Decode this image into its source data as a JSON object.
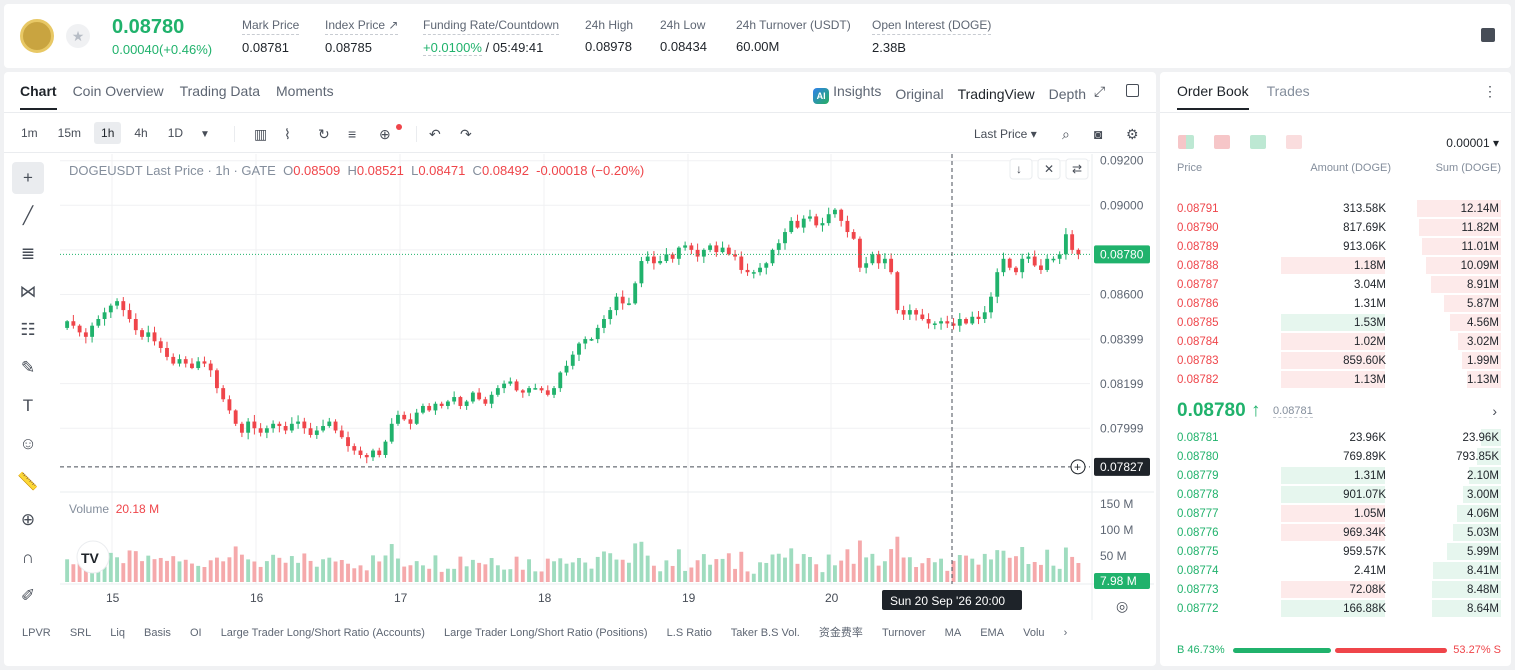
{
  "header": {
    "last_price": "0.08780",
    "change": "0.00040(+0.46%)",
    "stats": [
      {
        "key": "Mark Price",
        "value": "0.08781"
      },
      {
        "key": "Index Price ↗",
        "value": "0.08785"
      },
      {
        "key": "Funding Rate/Countdown",
        "value": "+0.0100%",
        "value2": "/ 05:49:41"
      },
      {
        "key": "24h High",
        "value": "0.08978"
      },
      {
        "key": "24h Low",
        "value": "0.08434"
      },
      {
        "key": "24h Turnover (USDT)",
        "value": "60.00M"
      },
      {
        "key": "Open Interest (DOGE)",
        "value": "2.38B"
      }
    ]
  },
  "chart_tabs": [
    "Chart",
    "Coin Overview",
    "Trading Data",
    "Moments"
  ],
  "view_tabs": {
    "insights": "Insights",
    "original": "Original",
    "tradingview": "TradingView",
    "depth": "Depth"
  },
  "intervals": [
    "1m",
    "15m",
    "1h",
    "4h",
    "1D"
  ],
  "price_type": "Last Price ▾",
  "legend": {
    "symbol": "DOGEUSDT Last Price · 1h · GATE",
    "o": "0.08509",
    "h": "0.08521",
    "l": "0.08471",
    "c": "0.08492",
    "chg": "-0.00018 (−0.20%)"
  },
  "volume_legend": {
    "label": "Volume",
    "value": "20.18 M"
  },
  "bottom_indicators": [
    "LPVR",
    "SRL",
    "Liq",
    "Basis",
    "OI",
    "Large Trader Long/Short Ratio (Accounts)",
    "Large Trader Long/Short Ratio (Positions)",
    "L.S Ratio",
    "Taker B.S Vol.",
    "资金费率",
    "Turnover",
    "MA",
    "EMA",
    "Volu"
  ],
  "chart_data": {
    "type": "candlestick",
    "symbol": "DOGEUSDT",
    "interval": "1h",
    "price_axis_ticks": [
      "0.09200",
      "0.09000",
      "0.08600",
      "0.08399",
      "0.08199",
      "0.07999"
    ],
    "volume_axis_ticks": [
      "150 M",
      "100 M",
      "50 M"
    ],
    "x_ticks": [
      "15",
      "16",
      "17",
      "18",
      "19",
      "20"
    ],
    "ylim": [
      0.0775,
      0.0923
    ],
    "vol_max": 160,
    "last_price_label": "0.08780",
    "crosshair_price_label": "0.07827",
    "crosshair_volume_label": "7.98 M",
    "crosshair_time_label": "Sun 20 Sep '26   20:00",
    "closes": [
      0.0848,
      0.0846,
      0.0843,
      0.0841,
      0.0846,
      0.0849,
      0.0852,
      0.0855,
      0.0857,
      0.0853,
      0.0849,
      0.0844,
      0.0841,
      0.0843,
      0.0839,
      0.0836,
      0.0832,
      0.0829,
      0.0831,
      0.0829,
      0.0827,
      0.083,
      0.0829,
      0.0826,
      0.0818,
      0.0813,
      0.0808,
      0.0802,
      0.0798,
      0.0803,
      0.08,
      0.0798,
      0.08,
      0.0802,
      0.0801,
      0.0799,
      0.0802,
      0.0803,
      0.08,
      0.0797,
      0.0799,
      0.0801,
      0.0803,
      0.0799,
      0.0796,
      0.0792,
      0.079,
      0.0788,
      0.0787,
      0.079,
      0.0788,
      0.0794,
      0.0802,
      0.0806,
      0.0804,
      0.0802,
      0.0807,
      0.081,
      0.0808,
      0.0811,
      0.081,
      0.0812,
      0.0814,
      0.081,
      0.0812,
      0.0816,
      0.0813,
      0.0811,
      0.0815,
      0.0818,
      0.082,
      0.0821,
      0.0817,
      0.0816,
      0.0818,
      0.0818,
      0.0817,
      0.0815,
      0.0818,
      0.0825,
      0.0828,
      0.0833,
      0.0838,
      0.084,
      0.084,
      0.0845,
      0.0849,
      0.0853,
      0.0859,
      0.0856,
      0.0856,
      0.0865,
      0.0875,
      0.0877,
      0.0874,
      0.0875,
      0.0878,
      0.0876,
      0.0881,
      0.0882,
      0.088,
      0.0877,
      0.088,
      0.0882,
      0.0879,
      0.0881,
      0.0878,
      0.0877,
      0.0871,
      0.087,
      0.087,
      0.0872,
      0.0874,
      0.088,
      0.0883,
      0.0888,
      0.0893,
      0.089,
      0.0894,
      0.0895,
      0.0891,
      0.0892,
      0.0896,
      0.0898,
      0.0893,
      0.0888,
      0.0885,
      0.0872,
      0.0874,
      0.0878,
      0.0874,
      0.0876,
      0.087,
      0.0853,
      0.0851,
      0.0853,
      0.0851,
      0.0849,
      0.0847,
      0.0847,
      0.0848,
      0.0847,
      0.0846,
      0.0849,
      0.0847,
      0.085,
      0.0849,
      0.0852,
      0.0859,
      0.087,
      0.0876,
      0.0872,
      0.087,
      0.0876,
      0.0877,
      0.0873,
      0.0871,
      0.0876,
      0.0876,
      0.0878,
      0.0887,
      0.088,
      0.0878
    ]
  },
  "orderbook": {
    "tabs": [
      "Order Book",
      "Trades"
    ],
    "precision": "0.00001 ▾",
    "headers": {
      "price": "Price",
      "amount": "Amount (DOGE)",
      "sum": "Sum (DOGE)"
    },
    "asks": [
      {
        "price": "0.08791",
        "amount": "313.58K",
        "sum": "12.14M",
        "amt_side": "sell",
        "amt_frac": 0.0,
        "sum_frac": 0.36
      },
      {
        "price": "0.08790",
        "amount": "817.69K",
        "sum": "11.82M",
        "amt_side": "sell",
        "amt_frac": 0.0,
        "sum_frac": 0.35
      },
      {
        "price": "0.08789",
        "amount": "913.06K",
        "sum": "11.01M",
        "amt_side": "sell",
        "amt_frac": 0.0,
        "sum_frac": 0.33
      },
      {
        "price": "0.08788",
        "amount": "1.18M",
        "sum": "10.09M",
        "amt_side": "sell",
        "amt_frac": 1.0,
        "sum_frac": 0.3
      },
      {
        "price": "0.08787",
        "amount": "3.04M",
        "sum": "8.91M",
        "amt_side": "sell",
        "amt_frac": 0.0,
        "sum_frac": 0.27
      },
      {
        "price": "0.08786",
        "amount": "1.31M",
        "sum": "5.87M",
        "amt_side": "sell",
        "amt_frac": 0.0,
        "sum_frac": 0.18
      },
      {
        "price": "0.08785",
        "amount": "1.53M",
        "sum": "4.56M",
        "amt_side": "buy",
        "amt_frac": 1.0,
        "sum_frac": 0.14
      },
      {
        "price": "0.08784",
        "amount": "1.02M",
        "sum": "3.02M",
        "amt_side": "sell",
        "amt_frac": 1.0,
        "sum_frac": 0.09
      },
      {
        "price": "0.08783",
        "amount": "859.60K",
        "sum": "1.99M",
        "amt_side": "sell",
        "amt_frac": 1.0,
        "sum_frac": 0.06
      },
      {
        "price": "0.08782",
        "amount": "1.13M",
        "sum": "1.13M",
        "amt_side": "sell",
        "amt_frac": 1.0,
        "sum_frac": 0.03
      }
    ],
    "mid_price": "0.08780 ↑",
    "mid_mark": "0.08781",
    "bids": [
      {
        "price": "0.08781",
        "amount": "23.96K",
        "sum": "23.96K",
        "amt_side": "buy",
        "amt_frac": 0.0,
        "sum_frac": 0.0
      },
      {
        "price": "0.08780",
        "amount": "769.89K",
        "sum": "793.85K",
        "amt_side": "buy",
        "amt_frac": 0.0,
        "sum_frac": 0.03
      },
      {
        "price": "0.08779",
        "amount": "1.31M",
        "sum": "2.10M",
        "amt_side": "buy",
        "amt_frac": 1.0,
        "sum_frac": 0.08
      },
      {
        "price": "0.08778",
        "amount": "901.07K",
        "sum": "3.00M",
        "amt_side": "buy",
        "amt_frac": 1.0,
        "sum_frac": 0.12
      },
      {
        "price": "0.08777",
        "amount": "1.05M",
        "sum": "4.06M",
        "amt_side": "sell",
        "amt_frac": 1.0,
        "sum_frac": 0.16
      },
      {
        "price": "0.08776",
        "amount": "969.34K",
        "sum": "5.03M",
        "amt_side": "sell",
        "amt_frac": 1.0,
        "sum_frac": 0.19
      },
      {
        "price": "0.08775",
        "amount": "959.57K",
        "sum": "5.99M",
        "amt_side": "buy",
        "amt_frac": 0.0,
        "sum_frac": 0.23
      },
      {
        "price": "0.08774",
        "amount": "2.41M",
        "sum": "8.41M",
        "amt_side": "buy",
        "amt_frac": 0.0,
        "sum_frac": 0.32
      },
      {
        "price": "0.08773",
        "amount": "72.08K",
        "sum": "8.48M",
        "amt_side": "sell",
        "amt_frac": 1.0,
        "sum_frac": 0.33
      },
      {
        "price": "0.08772",
        "amount": "166.88K",
        "sum": "8.64M",
        "amt_side": "buy",
        "amt_frac": 1.0,
        "sum_frac": 0.33
      }
    ],
    "ratio": {
      "buy_label": "B 46.73%",
      "sell_label": "53.27% S",
      "buy_pct": 46.73
    }
  },
  "colors": {
    "up": "#20b26c",
    "down": "#ef454a",
    "up_soft": "#e6f6ee",
    "down_soft": "#fdeaea"
  }
}
